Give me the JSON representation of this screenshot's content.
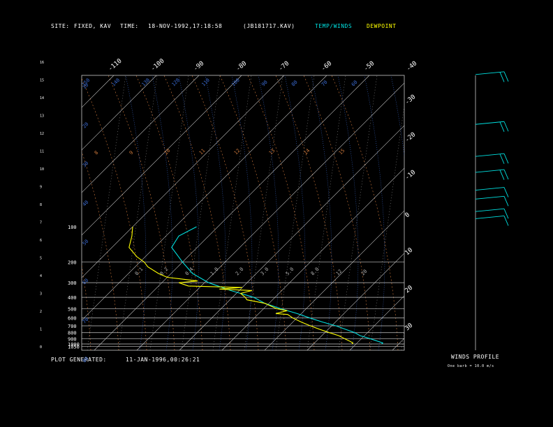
{
  "header": {
    "site_label": "SITE:",
    "site_value": "FIXED, KAV",
    "time_label": "TIME:",
    "time_value": "18-NOV-1992,17:18:58",
    "file_value": "(JB181717.KAV)",
    "temp_winds_label": "TEMP/WINDS",
    "dewpoint_label": "DEWPOINT"
  },
  "footer": {
    "plot_generated_label": "PLOT GENERATED:",
    "plot_generated_value": "11-JAN-1996,00:26:21"
  },
  "winds": {
    "title": "WINDS PROFILE",
    "note": "One barb = 10.0 m/s"
  },
  "colors": {
    "temp": "#00e0e0",
    "dewpoint": "#ffff00",
    "isobar": "#c8c8c8",
    "isotherm": "#c8c8c8",
    "dry_adiabat": "#d07a3c",
    "moist_adiabat": "#3a6ad0",
    "mixing_ratio": "#b0b0b0",
    "text": "#ffffff"
  },
  "chart_data": {
    "type": "line",
    "pressure_labels": [
      "100",
      "200",
      "300",
      "400",
      "500",
      "600",
      "700",
      "800",
      "900",
      "1000",
      "1050"
    ],
    "altitude_labels": [
      "0",
      "1",
      "2",
      "3",
      "4",
      "5",
      "6",
      "7",
      "8",
      "9",
      "10",
      "11",
      "12",
      "13",
      "14",
      "15",
      "16"
    ],
    "isotherm_top_labels": [
      "-110",
      "-100",
      "-90",
      "-80",
      "-70",
      "-60",
      "-50",
      "-40"
    ],
    "isotherm_right_labels": [
      "-30",
      "-20",
      "-10",
      "0",
      "10",
      "20",
      "30"
    ],
    "theta_labels": [
      "10",
      "20",
      "30",
      "40",
      "50",
      "60",
      "70",
      "80"
    ],
    "dry_adiabat_labels": [
      "150",
      "140",
      "130",
      "120",
      "110",
      "100",
      "90",
      "80",
      "70",
      "60",
      "50",
      "40",
      "30"
    ],
    "moist_labels": [
      "8",
      "9",
      "10",
      "11",
      "12",
      "13",
      "14",
      "15"
    ],
    "mixing_ratio_labels": [
      "0.1",
      "0.2",
      "0.4",
      "1.0",
      "2.0",
      "3.0",
      "5.0",
      "8.0",
      "12",
      "20"
    ],
    "series": [
      {
        "name": "TEMP/WINDS",
        "points": [
          [
            1000,
            6
          ],
          [
            980,
            6
          ],
          [
            900,
            2
          ],
          [
            850,
            -1
          ],
          [
            800,
            -3
          ],
          [
            700,
            -9
          ],
          [
            650,
            -13
          ],
          [
            600,
            -17
          ],
          [
            550,
            -21
          ],
          [
            500,
            -26
          ],
          [
            450,
            -31
          ],
          [
            400,
            -35
          ],
          [
            350,
            -42
          ],
          [
            300,
            -49
          ],
          [
            250,
            -55
          ],
          [
            200,
            -60
          ],
          [
            150,
            -66
          ],
          [
            120,
            -67
          ],
          [
            100,
            -65
          ]
        ]
      },
      {
        "name": "DEWPOINT",
        "points": [
          [
            1000,
            -1
          ],
          [
            980,
            -1
          ],
          [
            950,
            -2
          ],
          [
            900,
            -4
          ],
          [
            850,
            -6
          ],
          [
            800,
            -9
          ],
          [
            750,
            -12
          ],
          [
            700,
            -15
          ],
          [
            650,
            -18
          ],
          [
            600,
            -21
          ],
          [
            560,
            -23
          ],
          [
            550,
            -26
          ],
          [
            520,
            -24
          ],
          [
            500,
            -27
          ],
          [
            450,
            -31
          ],
          [
            420,
            -36
          ],
          [
            400,
            -37
          ],
          [
            370,
            -39
          ],
          [
            350,
            -37
          ],
          [
            340,
            -45
          ],
          [
            330,
            -40
          ],
          [
            320,
            -53
          ],
          [
            300,
            -56
          ],
          [
            290,
            -52
          ],
          [
            270,
            -60
          ],
          [
            250,
            -63
          ],
          [
            220,
            -67
          ],
          [
            200,
            -69
          ],
          [
            180,
            -72
          ],
          [
            150,
            -76
          ],
          [
            120,
            -78
          ],
          [
            100,
            -80
          ]
        ]
      }
    ],
    "wind_barbs": [
      {
        "height_km": 15.3,
        "barbs": 2
      },
      {
        "height_km": 12.5,
        "barbs": 2
      },
      {
        "height_km": 10.7,
        "barbs": 2
      },
      {
        "height_km": 9.8,
        "barbs": 2
      },
      {
        "height_km": 8.8,
        "barbs": 1
      },
      {
        "height_km": 8.3,
        "barbs": 1
      },
      {
        "height_km": 7.6,
        "barbs": 1
      },
      {
        "height_km": 7.2,
        "barbs": 1
      }
    ]
  }
}
